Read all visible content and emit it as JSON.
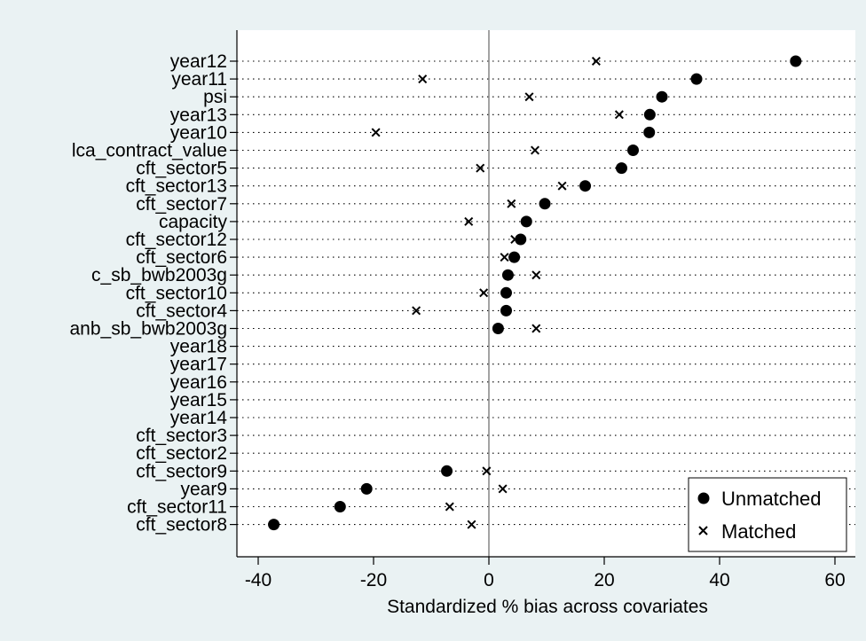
{
  "chart_data": {
    "type": "scatter",
    "xlabel": "Standardized % bias across covariates",
    "ylabel": "",
    "xlim": [
      -42,
      64
    ],
    "xticks": [
      -40,
      -20,
      0,
      20,
      40,
      60
    ],
    "reference_line": 0,
    "grid": "dotted horizontal",
    "legend_position": "bottom-right",
    "series": [
      {
        "name": "Unmatched",
        "marker": "filled-circle"
      },
      {
        "name": "Matched",
        "marker": "x"
      }
    ],
    "rows": [
      {
        "label": "year12",
        "unmatched": 53.2,
        "matched": 18.6
      },
      {
        "label": "year11",
        "unmatched": 36.0,
        "matched": -11.5
      },
      {
        "label": "psi",
        "unmatched": 30.0,
        "matched": 7.0
      },
      {
        "label": "year13",
        "unmatched": 27.9,
        "matched": 22.6
      },
      {
        "label": "year10",
        "unmatched": 27.8,
        "matched": -19.6
      },
      {
        "label": "lca_contract_value",
        "unmatched": 25.0,
        "matched": 8.0
      },
      {
        "label": "cft_sector5",
        "unmatched": 23.0,
        "matched": -1.5
      },
      {
        "label": "cft_sector13",
        "unmatched": 16.7,
        "matched": 12.7
      },
      {
        "label": "cft_sector7",
        "unmatched": 9.7,
        "matched": 3.9
      },
      {
        "label": "capacity",
        "unmatched": 6.5,
        "matched": -3.5
      },
      {
        "label": "cft_sector12",
        "unmatched": 5.5,
        "matched": 4.5
      },
      {
        "label": "cft_sector6",
        "unmatched": 4.4,
        "matched": 2.7
      },
      {
        "label": "c_sb_bwb2003g",
        "unmatched": 3.3,
        "matched": 8.2
      },
      {
        "label": "cft_sector10",
        "unmatched": 3.0,
        "matched": -0.9
      },
      {
        "label": "cft_sector4",
        "unmatched": 3.0,
        "matched": -12.6
      },
      {
        "label": "anb_sb_bwb2003g",
        "unmatched": 1.6,
        "matched": 8.2
      },
      {
        "label": "year18",
        "unmatched": null,
        "matched": null
      },
      {
        "label": "year17",
        "unmatched": null,
        "matched": null
      },
      {
        "label": "year16",
        "unmatched": null,
        "matched": null
      },
      {
        "label": "year15",
        "unmatched": null,
        "matched": null
      },
      {
        "label": "year14",
        "unmatched": null,
        "matched": null
      },
      {
        "label": "cft_sector3",
        "unmatched": null,
        "matched": null
      },
      {
        "label": "cft_sector2",
        "unmatched": null,
        "matched": null
      },
      {
        "label": "cft_sector9",
        "unmatched": -7.3,
        "matched": -0.4
      },
      {
        "label": "year9",
        "unmatched": -21.2,
        "matched": 2.4
      },
      {
        "label": "cft_sector11",
        "unmatched": -25.8,
        "matched": -6.8
      },
      {
        "label": "cft_sector8",
        "unmatched": -37.3,
        "matched": -3.0
      }
    ]
  }
}
